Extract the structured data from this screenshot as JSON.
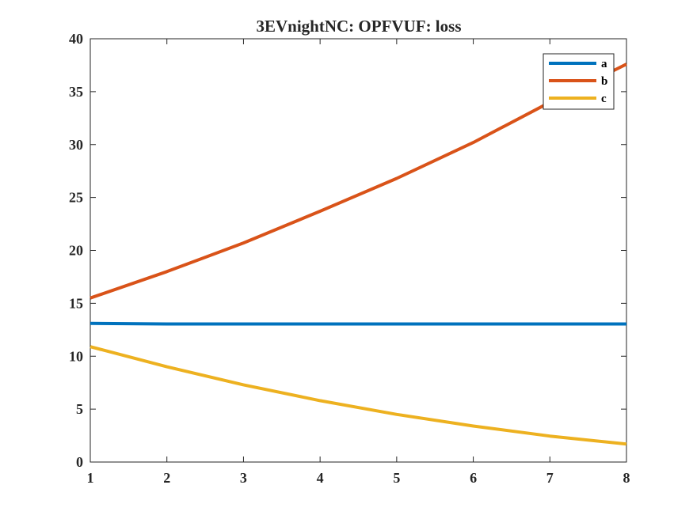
{
  "chart_data": {
    "type": "line",
    "title": "3EVnightNC: OPFVUF: loss",
    "xlabel": "",
    "ylabel": "",
    "x": [
      1,
      2,
      3,
      4,
      5,
      6,
      7,
      8
    ],
    "xlim": [
      1,
      8
    ],
    "ylim": [
      0,
      40
    ],
    "xticks": [
      1,
      2,
      3,
      4,
      5,
      6,
      7,
      8
    ],
    "yticks": [
      0,
      5,
      10,
      15,
      20,
      25,
      30,
      35,
      40
    ],
    "grid": false,
    "legend_position": "top-right",
    "series": [
      {
        "name": "a",
        "color": "#0072BD",
        "values": [
          13.1,
          13.05,
          13.05,
          13.05,
          13.05,
          13.05,
          13.05,
          13.05
        ]
      },
      {
        "name": "b",
        "color": "#D95319",
        "values": [
          15.5,
          18.0,
          20.7,
          23.7,
          26.8,
          30.2,
          34.0,
          37.6
        ]
      },
      {
        "name": "c",
        "color": "#EDB120",
        "values": [
          10.9,
          9.0,
          7.3,
          5.8,
          4.5,
          3.4,
          2.45,
          1.7
        ]
      }
    ]
  }
}
